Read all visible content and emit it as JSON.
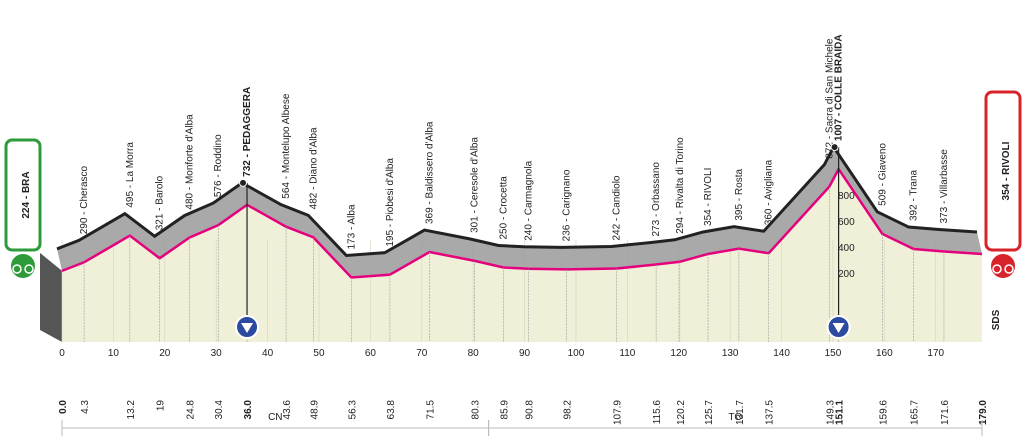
{
  "chart_data": {
    "type": "profile",
    "start": {
      "label": "224 - BRA",
      "km": {
        "value": 0,
        "label": "0.0"
      },
      "altitude": 224,
      "color": "#2e9b3a"
    },
    "finish": {
      "label": "354 - RIVOLI",
      "km": {
        "value": 179,
        "label": "179.0"
      },
      "altitude": 354,
      "color": "#d8232a"
    },
    "points": [
      {
        "km": 4.3,
        "altitude": 290,
        "label": "290 - Cherasco"
      },
      {
        "km": 13.2,
        "altitude": 495,
        "label": "495 - La Morra"
      },
      {
        "km": 19.0,
        "altitude": 321,
        "label": "321 - Barolo"
      },
      {
        "km": 24.8,
        "altitude": 480,
        "label": "480 - Monforte d'Alba"
      },
      {
        "km": 30.4,
        "altitude": 576,
        "label": "576 - Roddino"
      },
      {
        "km": {
          "value": 36,
          "label": "36.0"
        },
        "altitude": 732,
        "label": "732 - PEDAGGERA",
        "climb": true
      },
      {
        "km": 43.6,
        "altitude": 564,
        "label": "564 - Montelupo Albese"
      },
      {
        "km": 48.9,
        "altitude": 482,
        "label": "482 - Diano d'Alba"
      },
      {
        "km": 56.3,
        "altitude": 173,
        "label": "173 - Alba"
      },
      {
        "km": 63.8,
        "altitude": 195,
        "label": "195 - Piobesi d'Alba"
      },
      {
        "km": 71.5,
        "altitude": 369,
        "label": "369 - Baldissero d'Alba"
      },
      {
        "km": 80.3,
        "altitude": 301,
        "label": "301 - Ceresole d'Alba"
      },
      {
        "km": 85.9,
        "altitude": 250,
        "label": "250 - Crocetta"
      },
      {
        "km": 90.8,
        "altitude": 240,
        "label": "240 - Carmagnola"
      },
      {
        "km": 98.2,
        "altitude": 236,
        "label": "236 - Carignano"
      },
      {
        "km": 107.9,
        "altitude": 242,
        "label": "242 - Candiolo"
      },
      {
        "km": 115.6,
        "altitude": 273,
        "label": "273 - Orbassano"
      },
      {
        "km": 120.2,
        "altitude": 294,
        "label": "294 - Rivalta di Torino"
      },
      {
        "km": 125.7,
        "altitude": 354,
        "label": "354 - RIVOLI"
      },
      {
        "km": 131.7,
        "altitude": 395,
        "label": "395 - Rosta"
      },
      {
        "km": 137.5,
        "altitude": 360,
        "label": "360 - Avigliana"
      },
      {
        "km": 149.3,
        "altitude": 872,
        "label": "872 - Sacra di San Michele"
      },
      {
        "km": 151.1,
        "altitude": 1007,
        "label": "1007 - COLLE BRAIDA",
        "climb": true
      },
      {
        "km": 159.6,
        "altitude": 509,
        "label": "509 - Giaveno"
      },
      {
        "km": 165.7,
        "altitude": 392,
        "label": "392 - Trana"
      },
      {
        "km": 171.6,
        "altitude": 373,
        "label": "373 - Villarbasse"
      }
    ],
    "xlim": [
      0,
      179
    ],
    "xticks": [
      0,
      10,
      20,
      30,
      40,
      50,
      60,
      70,
      80,
      90,
      100,
      110,
      120,
      130,
      140,
      150,
      160,
      170
    ],
    "ylim": [
      0,
      1100
    ],
    "yticks": [
      200,
      400,
      600,
      800
    ],
    "regions": [
      {
        "label": "CN",
        "from": 0,
        "to": 83
      },
      {
        "label": "TO",
        "from": 83,
        "to": 179
      }
    ],
    "brand": "SDS",
    "line_color": "#e5007e",
    "ridge_color": "#222222",
    "fill_color": "#f0f0d8",
    "band_color": "#9a9a9a",
    "marker_color": "#2b4aa0"
  }
}
